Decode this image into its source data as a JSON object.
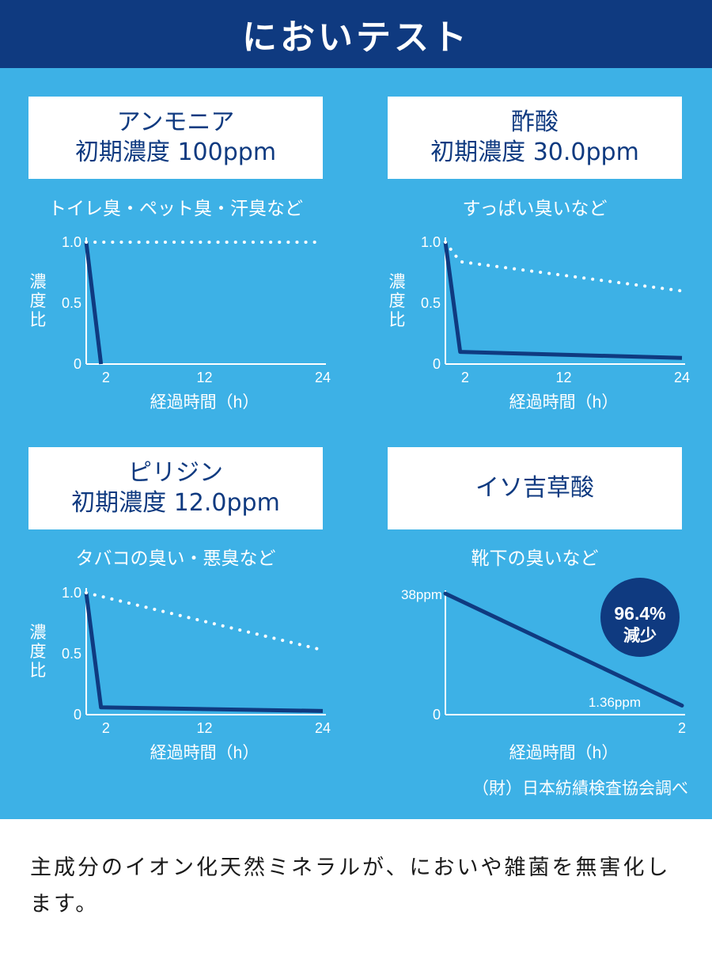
{
  "header": {
    "title": "においテスト"
  },
  "colors": {
    "header_bg": "#0f3a80",
    "panel_bg": "#3db1e6",
    "line": "#0f3a80",
    "dotted": "#ffffff",
    "axis": "#ffffff",
    "badge_bg": "#0f3a80"
  },
  "panels": [
    {
      "name": "アンモニア",
      "concentration": "初期濃度 100ppm",
      "examples": "トイレ臭・ペット臭・汗臭など"
    },
    {
      "name": "酢酸",
      "concentration": "初期濃度 30.0ppm",
      "examples": "すっぱい臭いなど"
    },
    {
      "name": "ピリジン",
      "concentration": "初期濃度 12.0ppm",
      "examples": "タバコの臭い・悪臭など"
    },
    {
      "name": "イソ吉草酸",
      "concentration": "",
      "examples": "靴下の臭いなど"
    }
  ],
  "chart_data": [
    {
      "type": "line",
      "title": "アンモニア",
      "xlabel": "経過時間（h）",
      "ylabel": "濃度比",
      "xlim": [
        0,
        24
      ],
      "ylim": [
        0,
        1.0
      ],
      "xticks": [
        "2",
        "12",
        "24"
      ],
      "yticks": [
        "1.0",
        "0.5",
        "0"
      ],
      "series": [
        {
          "style": "solid",
          "x": [
            0,
            1.5
          ],
          "y": [
            1.0,
            0.0
          ]
        },
        {
          "style": "dotted",
          "x": [
            0,
            24
          ],
          "y": [
            1.0,
            1.0
          ]
        }
      ]
    },
    {
      "type": "line",
      "title": "酢酸",
      "xlabel": "経過時間（h）",
      "ylabel": "濃度比",
      "xlim": [
        0,
        24
      ],
      "ylim": [
        0,
        1.0
      ],
      "xticks": [
        "2",
        "12",
        "24"
      ],
      "yticks": [
        "1.0",
        "0.5",
        "0"
      ],
      "series": [
        {
          "style": "solid",
          "x": [
            0,
            1.5,
            24
          ],
          "y": [
            1.0,
            0.1,
            0.05
          ]
        },
        {
          "style": "dotted",
          "x": [
            0,
            1.5,
            24
          ],
          "y": [
            1.0,
            0.84,
            0.6
          ]
        }
      ]
    },
    {
      "type": "line",
      "title": "ピリジン",
      "xlabel": "経過時間（h）",
      "ylabel": "濃度比",
      "xlim": [
        0,
        24
      ],
      "ylim": [
        0,
        1.0
      ],
      "xticks": [
        "2",
        "12",
        "24"
      ],
      "yticks": [
        "1.0",
        "0.5",
        "0"
      ],
      "series": [
        {
          "style": "solid",
          "x": [
            0,
            1.5,
            24
          ],
          "y": [
            1.0,
            0.06,
            0.03
          ]
        },
        {
          "style": "dotted",
          "x": [
            0,
            24
          ],
          "y": [
            1.0,
            0.53
          ]
        }
      ]
    },
    {
      "type": "line",
      "title": "イソ吉草酸",
      "xlabel": "経過時間（h）",
      "xlim": [
        0,
        2
      ],
      "xticks": [
        "2"
      ],
      "yticks": [
        "0"
      ],
      "start_label": "38ppm",
      "end_label": "1.36ppm",
      "badge": {
        "value": "96.4%",
        "label": "減少"
      },
      "series": [
        {
          "style": "solid",
          "x": [
            0,
            2
          ],
          "y": [
            38,
            1.36
          ]
        }
      ]
    }
  ],
  "credit": "（財）日本紡績検査協会調べ",
  "footer": {
    "text": "主成分のイオン化天然ミネラルが、においや雑菌を無害化します。"
  }
}
